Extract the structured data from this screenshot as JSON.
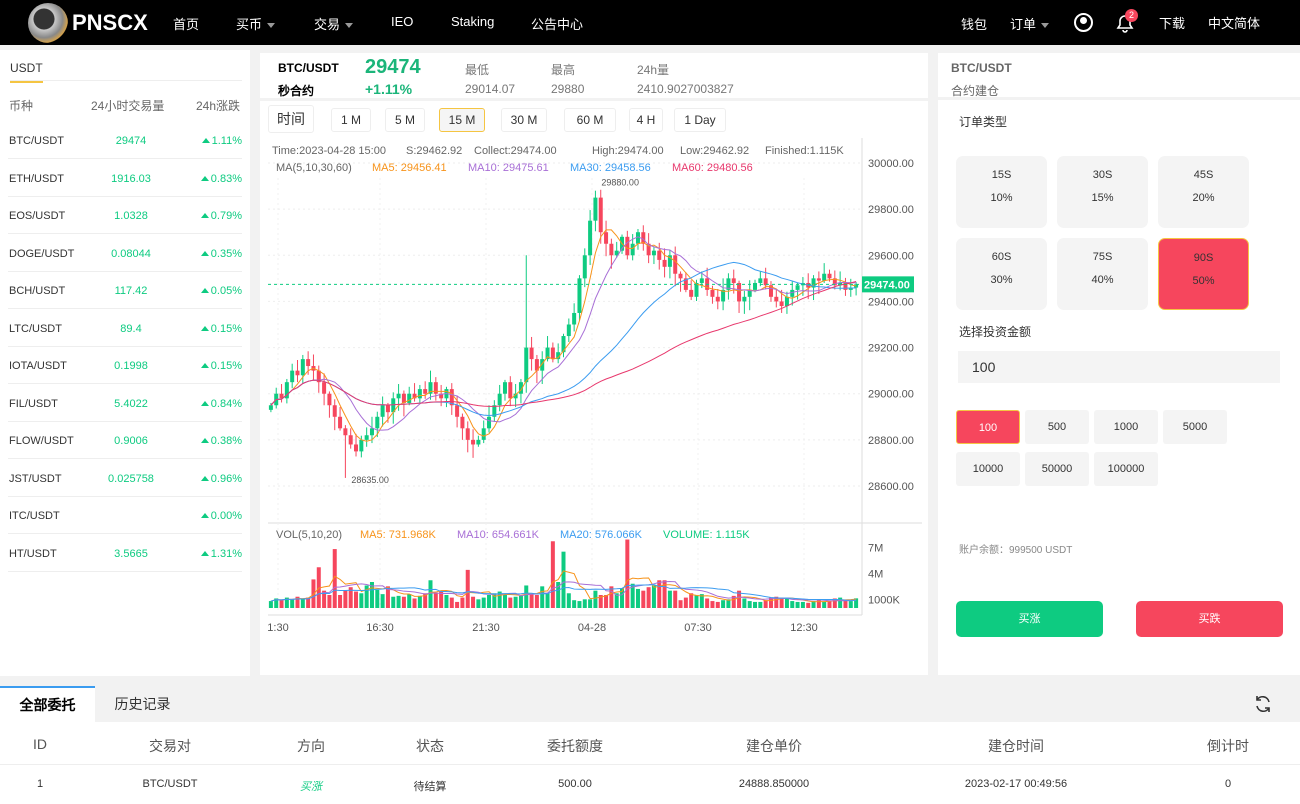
{
  "header": {
    "logo_text": "PNSCX",
    "nav": [
      {
        "label": "首页"
      },
      {
        "label": "买币",
        "dropdown": true
      },
      {
        "label": "交易",
        "dropdown": true
      },
      {
        "label": "IEO"
      },
      {
        "label": "Staking"
      },
      {
        "label": "公告中心"
      }
    ],
    "right": {
      "wallet": "钱包",
      "orders": "订单",
      "notification_count": "2",
      "download": "下载",
      "language": "中文简体"
    }
  },
  "market_list": {
    "tab": "USDT",
    "columns": [
      "币种",
      "24小时交易量",
      "24h涨跌"
    ],
    "rows": [
      {
        "pair": "BTC/USDT",
        "volume": "29474",
        "change": "1.11%"
      },
      {
        "pair": "ETH/USDT",
        "volume": "1916.03",
        "change": "0.83%"
      },
      {
        "pair": "EOS/USDT",
        "volume": "1.0328",
        "change": "0.79%"
      },
      {
        "pair": "DOGE/USDT",
        "volume": "0.08044",
        "change": "0.35%"
      },
      {
        "pair": "BCH/USDT",
        "volume": "117.42",
        "change": "0.05%"
      },
      {
        "pair": "LTC/USDT",
        "volume": "89.4",
        "change": "0.15%"
      },
      {
        "pair": "IOTA/USDT",
        "volume": "0.1998",
        "change": "0.15%"
      },
      {
        "pair": "FIL/USDT",
        "volume": "5.4022",
        "change": "0.84%"
      },
      {
        "pair": "FLOW/USDT",
        "volume": "0.9006",
        "change": "0.38%"
      },
      {
        "pair": "JST/USDT",
        "volume": "0.025758",
        "change": "0.96%"
      },
      {
        "pair": "ITC/USDT",
        "volume": "",
        "change": "0.00%"
      },
      {
        "pair": "HT/USDT",
        "volume": "3.5665",
        "change": "1.31%"
      }
    ]
  },
  "ticker": {
    "pair": "BTC/USDT",
    "type": "秒合约",
    "price": "29474",
    "change": "+1.11%",
    "low_label": "最低",
    "low": "29014.07",
    "high_label": "最高",
    "high": "29880",
    "vol_label": "24h量",
    "vol": "2410.9027003827"
  },
  "timeframes": {
    "label": "时间",
    "options": [
      "1 M",
      "5 M",
      "15 M",
      "30 M",
      "60 M",
      "4 H",
      "1 Day"
    ],
    "selected": "15 M"
  },
  "chart_info": {
    "time": "Time:2023-04-28 15:00",
    "open": "S:29462.92",
    "close": "Collect:29474.00",
    "high": "High:29474.00",
    "low": "Low:29462.92",
    "vol": "Finished:1.115K",
    "ma_title": "MA(5,10,30,60)",
    "ma5": "MA5: 29456.41",
    "ma10": "MA10: 29475.61",
    "ma30": "MA30: 29458.56",
    "ma60": "MA60: 29480.56",
    "vol_title": "VOL(5,10,20)",
    "vma5": "MA5: 731.968K",
    "vma10": "MA10: 654.661K",
    "vma20": "MA20: 576.066K",
    "volume": "VOLUME: 1.115K",
    "max_label": "29880.00",
    "min_label": "28635.00",
    "last_price": "29474.00"
  },
  "chart_data": {
    "type": "candlestick",
    "price_ticks": [
      "30000.00",
      "29800.00",
      "29600.00",
      "29400.00",
      "29200.00",
      "29000.00",
      "28800.00",
      "28600.00"
    ],
    "vol_ticks": [
      "7M",
      "4M",
      "1000K"
    ],
    "time_ticks": [
      "1:30",
      "16:30",
      "21:30",
      "04-28",
      "07:30",
      "12:30"
    ],
    "ylim": [
      28550,
      30060
    ],
    "closes": [
      28950,
      29000,
      28980,
      29050,
      29100,
      29080,
      29150,
      29120,
      29100,
      29050,
      29000,
      28950,
      28900,
      28850,
      28820,
      28780,
      28750,
      28800,
      28820,
      28850,
      28900,
      28950,
      28920,
      28980,
      29000,
      28960,
      29000,
      28980,
      29020,
      29000,
      29050,
      29000,
      28980,
      29020,
      28950,
      28900,
      28850,
      28800,
      28780,
      28800,
      28850,
      28900,
      28950,
      29000,
      29050,
      28980,
      29000,
      29050,
      29200,
      29150,
      29100,
      29150,
      29200,
      29150,
      29180,
      29250,
      29300,
      29350,
      29500,
      29600,
      29750,
      29850,
      29700,
      29650,
      29600,
      29620,
      29680,
      29600,
      29650,
      29700,
      29650,
      29600,
      29620,
      29580,
      29550,
      29600,
      29520,
      29500,
      29450,
      29420,
      29480,
      29500,
      29450,
      29420,
      29400,
      29450,
      29500,
      29480,
      29400,
      29420,
      29450,
      29480,
      29500,
      29470,
      29420,
      29400,
      29380,
      29420,
      29450,
      29470,
      29480,
      29460,
      29500,
      29490,
      29520,
      29500,
      29470,
      29480,
      29450,
      29460,
      29474
    ],
    "volumes_k": [
      800,
      1100,
      900,
      1200,
      1000,
      1300,
      1000,
      1200,
      3300,
      4700,
      2000,
      1500,
      6800,
      1500,
      2000,
      2400,
      1900,
      1700,
      2600,
      3000,
      2100,
      1600,
      2500,
      1300,
      1400,
      1300,
      1600,
      1100,
      1400,
      1700,
      3200,
      1800,
      1900,
      1500,
      1200,
      700,
      1200,
      4400,
      1300,
      1000,
      1200,
      1500,
      1700,
      1900,
      1500,
      1200,
      1300,
      1400,
      2600,
      1600,
      1500,
      2500,
      1700,
      7700,
      3000,
      6500,
      1700,
      900,
      800,
      1000,
      1000,
      2000,
      1500,
      1500,
      2500,
      1700,
      2300,
      7900,
      2800,
      2200,
      2000,
      2400,
      2600,
      3200,
      3200,
      2000,
      2000,
      900,
      1200,
      1700,
      1500,
      1600,
      1100,
      800,
      700,
      900,
      1000,
      1400,
      2000,
      1100,
      800,
      700,
      700,
      900,
      1200,
      1300,
      1200,
      1200,
      800,
      700,
      700,
      600,
      800,
      900,
      700,
      800,
      1100,
      1200,
      900,
      800,
      1115
    ],
    "colors": {
      "up": "#0ecb81",
      "down": "#f6465d",
      "ma5": "#f7931a",
      "ma10": "#a86fd6",
      "ma30": "#3b9cf0",
      "ma60": "#e8386d"
    }
  },
  "order_panel": {
    "pair": "BTC/USDT",
    "subtitle": "合约建仓",
    "type_label": "订单类型",
    "periods": [
      {
        "time": "15S",
        "rate": "10%"
      },
      {
        "time": "30S",
        "rate": "15%"
      },
      {
        "time": "45S",
        "rate": "20%"
      },
      {
        "time": "60S",
        "rate": "30%"
      },
      {
        "time": "75S",
        "rate": "40%"
      },
      {
        "time": "90S",
        "rate": "50%"
      }
    ],
    "selected_period": "90S",
    "amount_label": "选择投资金额",
    "amount_value": "100",
    "amounts": [
      "100",
      "500",
      "1000",
      "5000",
      "10000",
      "50000",
      "100000"
    ],
    "selected_amount": "100",
    "balance": "账户余额：999500 USDT",
    "buy_up": "买涨",
    "buy_down": "买跌"
  },
  "orders": {
    "tabs": [
      "全部委托",
      "历史记录"
    ],
    "active_tab": "全部委托",
    "columns": [
      "ID",
      "交易对",
      "方向",
      "状态",
      "委托额度",
      "建仓单价",
      "建仓时间",
      "倒计时"
    ],
    "rows": [
      {
        "id": "1",
        "pair": "BTC/USDT",
        "direction": "买涨",
        "status": "待结算",
        "amount": "500.00",
        "price": "24888.850000",
        "time": "2023-02-17 00:49:56",
        "countdown": "0"
      }
    ]
  }
}
